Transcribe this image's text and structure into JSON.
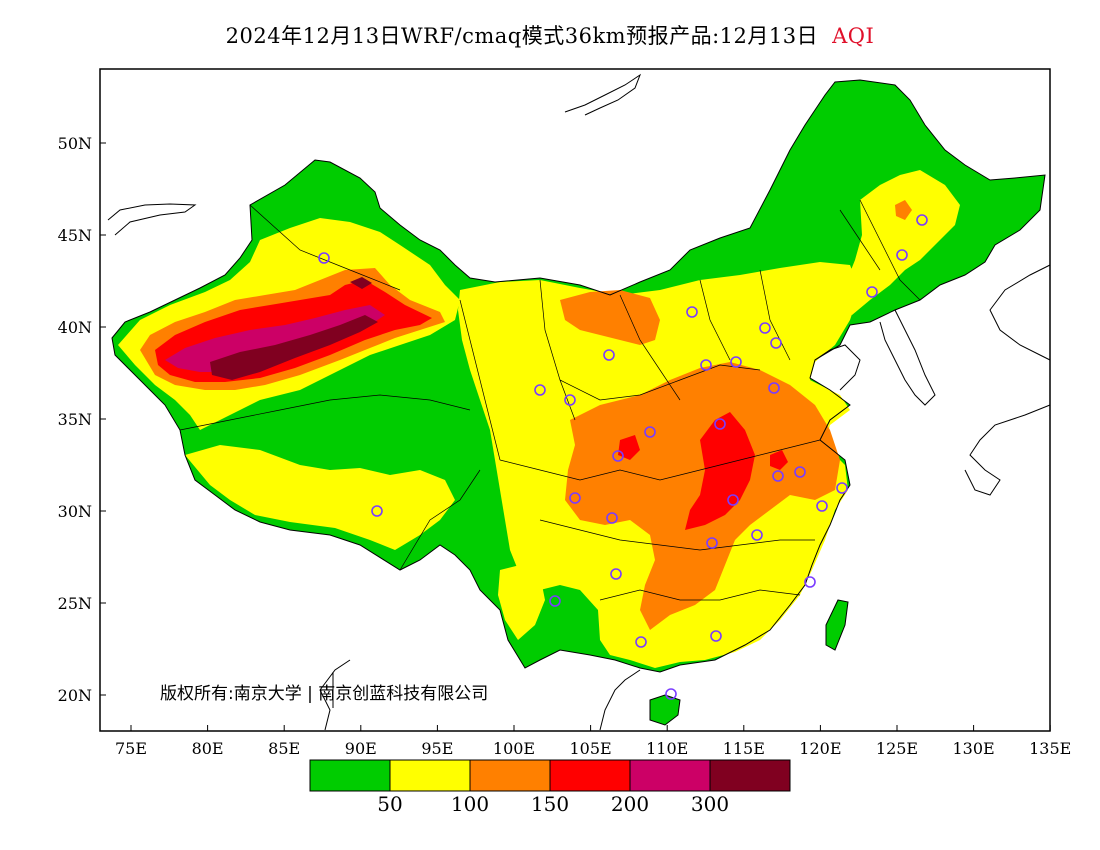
{
  "title": "2024年12月13日WRF/cmaq模式36km预报产品:12月13日",
  "title_variable": "AQI",
  "copyright": "版权所有:南京大学 | 南京创蓝科技有限公司",
  "axes": {
    "lat_labels": [
      "50N",
      "45N",
      "40N",
      "35N",
      "30N",
      "25N",
      "20N"
    ],
    "lon_labels": [
      "75E",
      "80E",
      "85E",
      "90E",
      "95E",
      "100E",
      "105E",
      "110E",
      "115E",
      "120E",
      "125E",
      "130E",
      "135E"
    ]
  },
  "legend": {
    "colors": [
      "#00cc00",
      "#ffff00",
      "#ff8000",
      "#ff0000",
      "#cc0066",
      "#800020"
    ],
    "thresholds": [
      "50",
      "100",
      "150",
      "200",
      "300"
    ]
  },
  "colors": {
    "good": "#00cc00",
    "moderate": "#ffff00",
    "unhealthy_sensitive": "#ff8000",
    "unhealthy": "#ff0000",
    "very_unhealthy": "#cc0066",
    "hazardous": "#800020",
    "station_marker": "#7a3cff"
  }
}
